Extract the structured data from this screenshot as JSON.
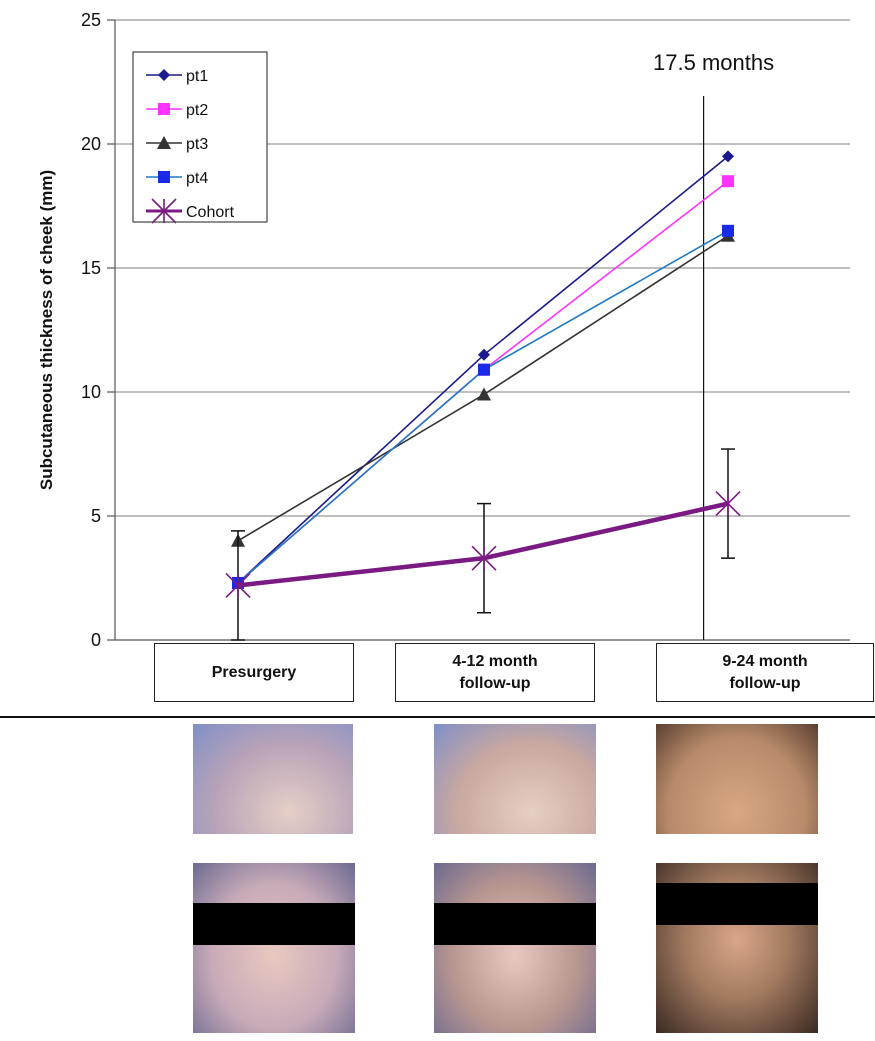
{
  "chart_data": {
    "type": "line",
    "ylabel": "Subcutaneous thickness of cheek (mm)",
    "ylim": [
      0,
      25
    ],
    "yticks": [
      0,
      5,
      10,
      15,
      20,
      25
    ],
    "grid": true,
    "legend_position": "top-left",
    "categories": [
      "Presurgery",
      "4-12 month\nfollow-up",
      "9-24 month\nfollow-up"
    ],
    "series": [
      {
        "name": "pt1",
        "values": [
          2.3,
          11.5,
          19.5
        ],
        "color": "#1a1a8c",
        "marker": "diamond"
      },
      {
        "name": "pt2",
        "values": [
          2.3,
          10.9,
          18.5
        ],
        "color": "#ff33ff",
        "marker": "square"
      },
      {
        "name": "pt3",
        "values": [
          4.0,
          9.9,
          16.3
        ],
        "color": "#333333",
        "marker": "triangle"
      },
      {
        "name": "pt4",
        "values": [
          2.3,
          10.9,
          16.5
        ],
        "color": "#1f7ac4",
        "marker": "square-blue"
      },
      {
        "name": "Cohort",
        "values": [
          2.2,
          3.3,
          5.5
        ],
        "color": "#7a1a82",
        "marker": "star",
        "error": [
          [
            0.0,
            4.4
          ],
          [
            1.1,
            5.5
          ],
          [
            3.3,
            7.7
          ]
        ]
      }
    ],
    "annotation": {
      "text": "17.5 months",
      "x_value": 1.9
    }
  },
  "photos": [
    {
      "panel": "presurgery-cheek-photo",
      "bg": "#b8a3b8"
    },
    {
      "panel": "early-followup-cheek-photo",
      "bg": "#c8a8a0"
    },
    {
      "panel": "late-followup-cheek-photo",
      "bg": "#b88a6a"
    },
    {
      "panel": "presurgery-face-photo",
      "bg": "#c7aab8"
    },
    {
      "panel": "early-followup-face-photo",
      "bg": "#b89690"
    },
    {
      "panel": "late-followup-face-photo",
      "bg": "#a27a60"
    }
  ]
}
